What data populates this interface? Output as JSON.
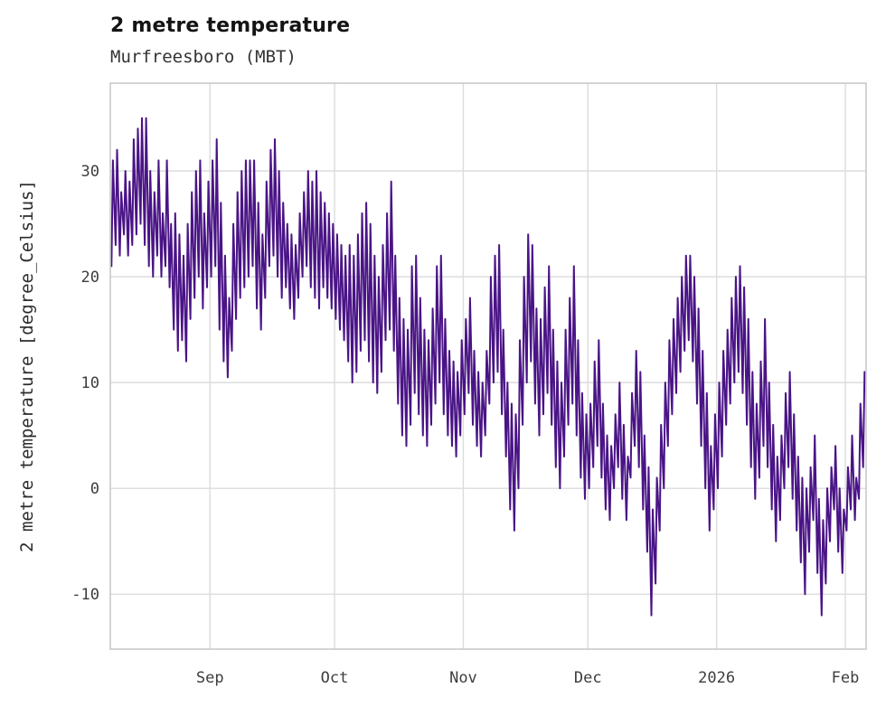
{
  "header": {
    "title": "2 metre temperature",
    "subtitle": "Murfreesboro (MBT)"
  },
  "chart_data": {
    "type": "line",
    "title": "2 metre temperature",
    "subtitle": "Murfreesboro (MBT)",
    "xlabel": "",
    "ylabel": "2 metre temperature [degree_Celsius]",
    "grid": true,
    "legend_position": "none",
    "line_color": "#4a1486",
    "grid_color": "#dcdcdc",
    "spine_color": "#c9c9c9",
    "ylim": [
      -15.2,
      38.3
    ],
    "y_ticks": [
      -10,
      0,
      10,
      20,
      30
    ],
    "x_range": [
      0,
      182
    ],
    "x_ticks": [
      {
        "pos": 24,
        "label": "Sep"
      },
      {
        "pos": 54,
        "label": "Oct"
      },
      {
        "pos": 85,
        "label": "Nov"
      },
      {
        "pos": 115,
        "label": "Dec"
      },
      {
        "pos": 146,
        "label": "2026"
      },
      {
        "pos": 177,
        "label": "Feb"
      }
    ],
    "series": [
      {
        "name": "2 metre temperature",
        "sampling": "daily minimum and maximum (degree_Celsius), estimated from plot, day 0 = left edge (~mid-Aug)",
        "daily_min": [
          21,
          23,
          22,
          24,
          22,
          23,
          24,
          25,
          23,
          21,
          20,
          22,
          20,
          21,
          19,
          15,
          13,
          14,
          12,
          16,
          18,
          20,
          17,
          19,
          20,
          21,
          15,
          12,
          10.5,
          13,
          16,
          18,
          19,
          20,
          21,
          17,
          15,
          18,
          21,
          22,
          20,
          18,
          19,
          17,
          16,
          18,
          20,
          21,
          19,
          18,
          17,
          19,
          18,
          17,
          16,
          15,
          14,
          12,
          10,
          11,
          13,
          14,
          12,
          10,
          9,
          11,
          14,
          15,
          13,
          8,
          5,
          4,
          6,
          9,
          7,
          5,
          4,
          6,
          8,
          10,
          7,
          5,
          4,
          3,
          5,
          7,
          9,
          6,
          4,
          3,
          5,
          8,
          10,
          11,
          7,
          3,
          -2,
          -4,
          0,
          6,
          10,
          12,
          8,
          5,
          7,
          9,
          6,
          2,
          0,
          3,
          6,
          8,
          5,
          1,
          -1,
          0,
          2,
          4,
          1,
          -2,
          -3,
          0,
          2,
          -1,
          -3,
          1,
          4,
          2,
          -2,
          -6,
          -12,
          -9,
          -4,
          0,
          4,
          7,
          9,
          11,
          13,
          14,
          12,
          8,
          4,
          0,
          -4,
          -2,
          0,
          3,
          6,
          8,
          10,
          11,
          9,
          6,
          2,
          -1,
          1,
          4,
          2,
          -2,
          -5,
          -3,
          0,
          2,
          -1,
          -4,
          -7,
          -10,
          -6,
          -3,
          -8,
          -12,
          -9,
          -5,
          -2,
          -6,
          -8,
          -4,
          -2,
          -3,
          -1,
          2
        ],
        "daily_max": [
          31,
          32,
          28,
          30,
          29,
          33,
          34,
          35,
          35,
          30,
          28,
          31,
          26,
          31,
          25,
          26,
          24,
          22,
          25,
          28,
          30,
          31,
          26,
          29,
          31,
          33,
          27,
          22,
          18,
          25,
          28,
          30,
          31,
          31,
          31,
          27,
          24,
          29,
          32,
          33,
          30,
          27,
          25,
          24,
          23,
          26,
          28,
          30,
          29,
          30,
          28,
          27,
          26,
          25,
          24,
          23,
          22,
          23,
          22,
          24,
          26,
          27,
          25,
          22,
          20,
          23,
          26,
          29,
          22,
          18,
          16,
          15,
          21,
          22,
          18,
          15,
          14,
          17,
          21,
          22,
          16,
          13,
          12,
          11,
          14,
          16,
          18,
          13,
          11,
          10,
          13,
          20,
          22,
          23,
          15,
          10,
          8,
          7,
          14,
          20,
          24,
          23,
          17,
          16,
          19,
          21,
          15,
          12,
          10,
          15,
          18,
          21,
          14,
          9,
          7,
          8,
          12,
          14,
          8,
          5,
          4,
          7,
          10,
          6,
          3,
          9,
          13,
          11,
          5,
          2,
          -2,
          1,
          6,
          10,
          14,
          16,
          18,
          20,
          22,
          22,
          20,
          17,
          13,
          9,
          4,
          7,
          10,
          13,
          15,
          18,
          20,
          21,
          19,
          16,
          11,
          8,
          12,
          16,
          10,
          6,
          3,
          5,
          9,
          11,
          7,
          3,
          1,
          0,
          2,
          5,
          -1,
          -3,
          0,
          2,
          4,
          0,
          -2,
          2,
          5,
          1,
          8,
          11
        ]
      }
    ]
  }
}
